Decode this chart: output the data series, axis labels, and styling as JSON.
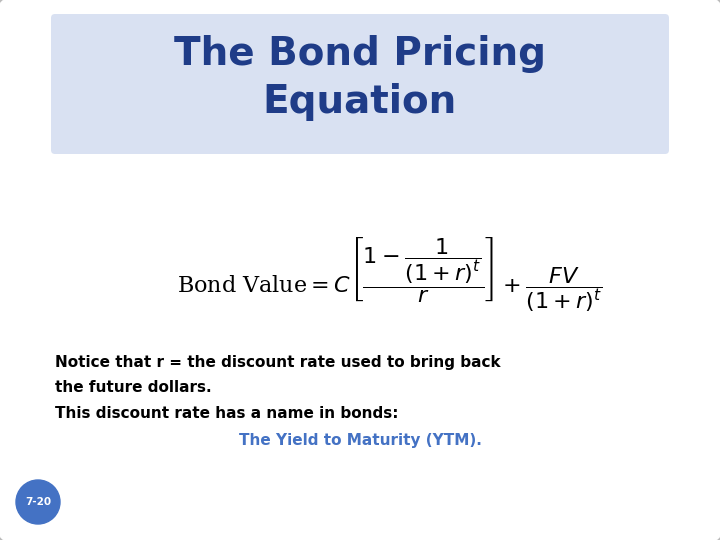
{
  "title_line1": "The Bond Pricing",
  "title_line2": "Equation",
  "title_color": "#1F3C88",
  "title_bg_color": "#D9E1F2",
  "body_bg_color": "#FFFFFF",
  "outer_bg_color": "#FFFFFF",
  "equation_latex": "$\\mathrm{Bond\\ Value} = C\\left[\\dfrac{1 - \\dfrac{1}{(1+r)^t}}{r}\\right] + \\dfrac{FV}{(1+r)^t}$",
  "note_line1": "Notice that r = the discount rate used to bring back",
  "note_line2": "the future dollars.",
  "note_line3": "This discount rate has a name in bonds:",
  "note_line4": "The Yield to Maturity (YTM).",
  "note_color": "#000000",
  "ytm_color": "#4472C4",
  "badge_text": "7-20",
  "badge_bg": "#4472C4",
  "badge_text_color": "#FFFFFF",
  "equation_color": "#000000",
  "card_edge_color": "#BBBBBB",
  "title_fontsize": 28,
  "note_fontsize": 11,
  "eq_fontsize": 16
}
